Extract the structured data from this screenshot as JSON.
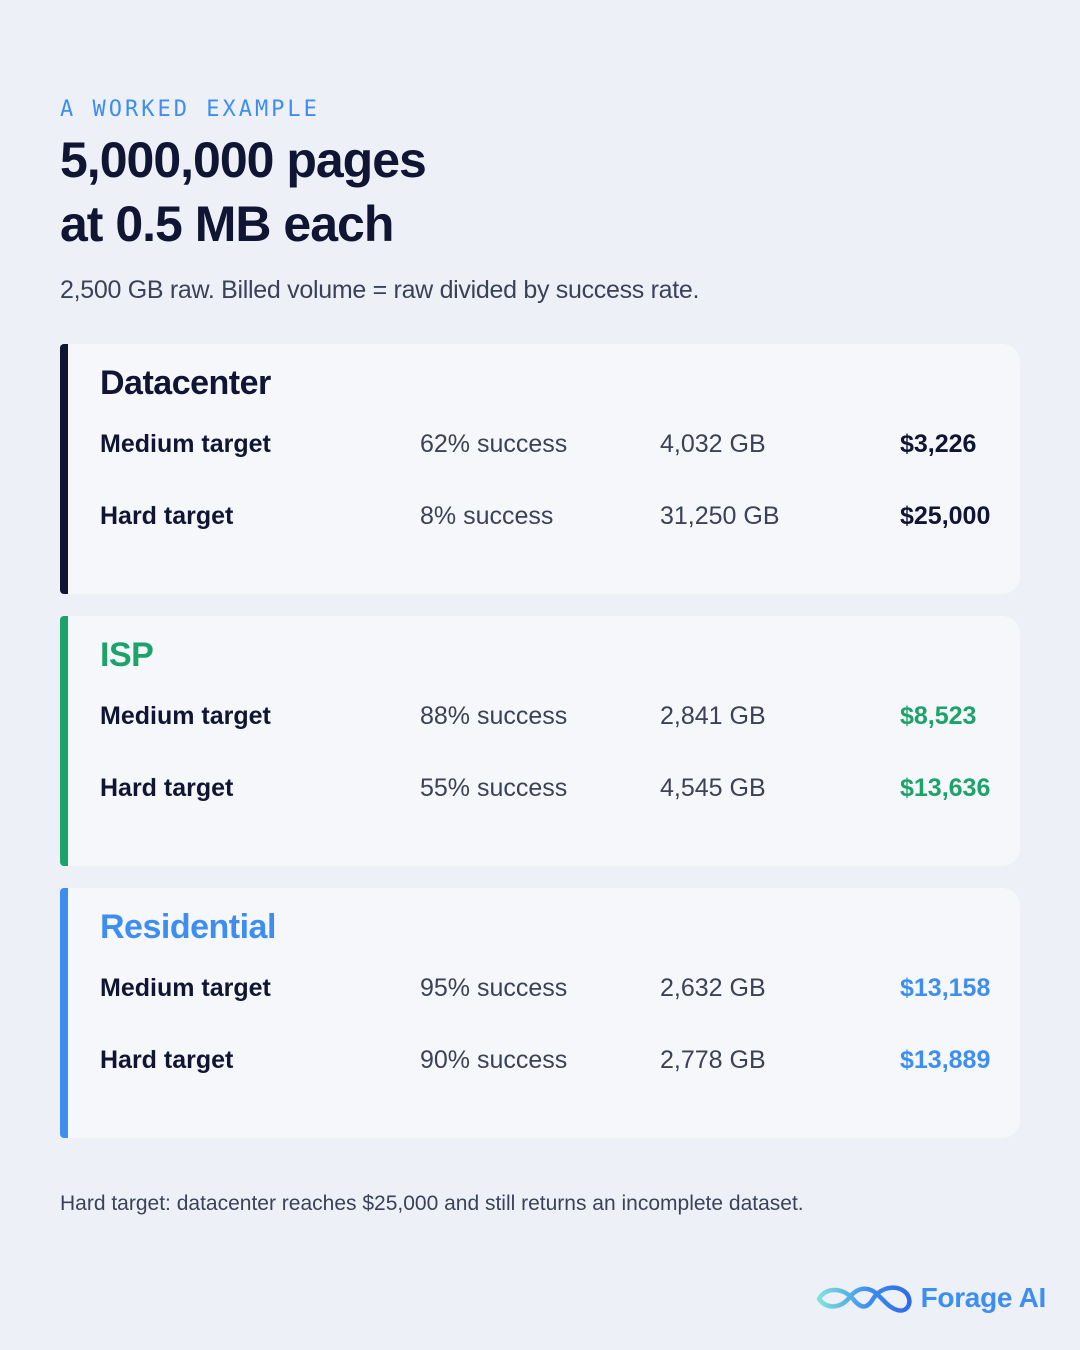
{
  "header": {
    "eyebrow": "A WORKED EXAMPLE",
    "title_line1": "5,000,000 pages",
    "title_line2": "at 0.5 MB each",
    "subtitle": "2,500 GB raw. Billed volume = raw divided by success rate."
  },
  "colors": {
    "background": "#EDF1F7",
    "navy": "#0F1533",
    "green": "#1BA36A",
    "blue": "#3D8EF0"
  },
  "cards": [
    {
      "title": "Datacenter",
      "rows": [
        {
          "target": "Medium target",
          "success": "62% success",
          "volume": "4,032 GB",
          "cost": "$3,226"
        },
        {
          "target": "Hard target",
          "success": "8% success",
          "volume": "31,250 GB",
          "cost": "$25,000"
        }
      ]
    },
    {
      "title": "ISP",
      "rows": [
        {
          "target": "Medium target",
          "success": "88% success",
          "volume": "2,841 GB",
          "cost": "$8,523"
        },
        {
          "target": "Hard target",
          "success": "55% success",
          "volume": "4,545 GB",
          "cost": "$13,636"
        }
      ]
    },
    {
      "title": "Residential",
      "rows": [
        {
          "target": "Medium target",
          "success": "95% success",
          "volume": "2,632 GB",
          "cost": "$13,158"
        },
        {
          "target": "Hard target",
          "success": "90% success",
          "volume": "2,778 GB",
          "cost": "$13,889"
        }
      ]
    }
  ],
  "footnote": "Hard target: datacenter reaches $25,000 and still returns an incomplete dataset.",
  "logo": {
    "text": "Forage AI",
    "icon": "infinity-loop-icon"
  }
}
